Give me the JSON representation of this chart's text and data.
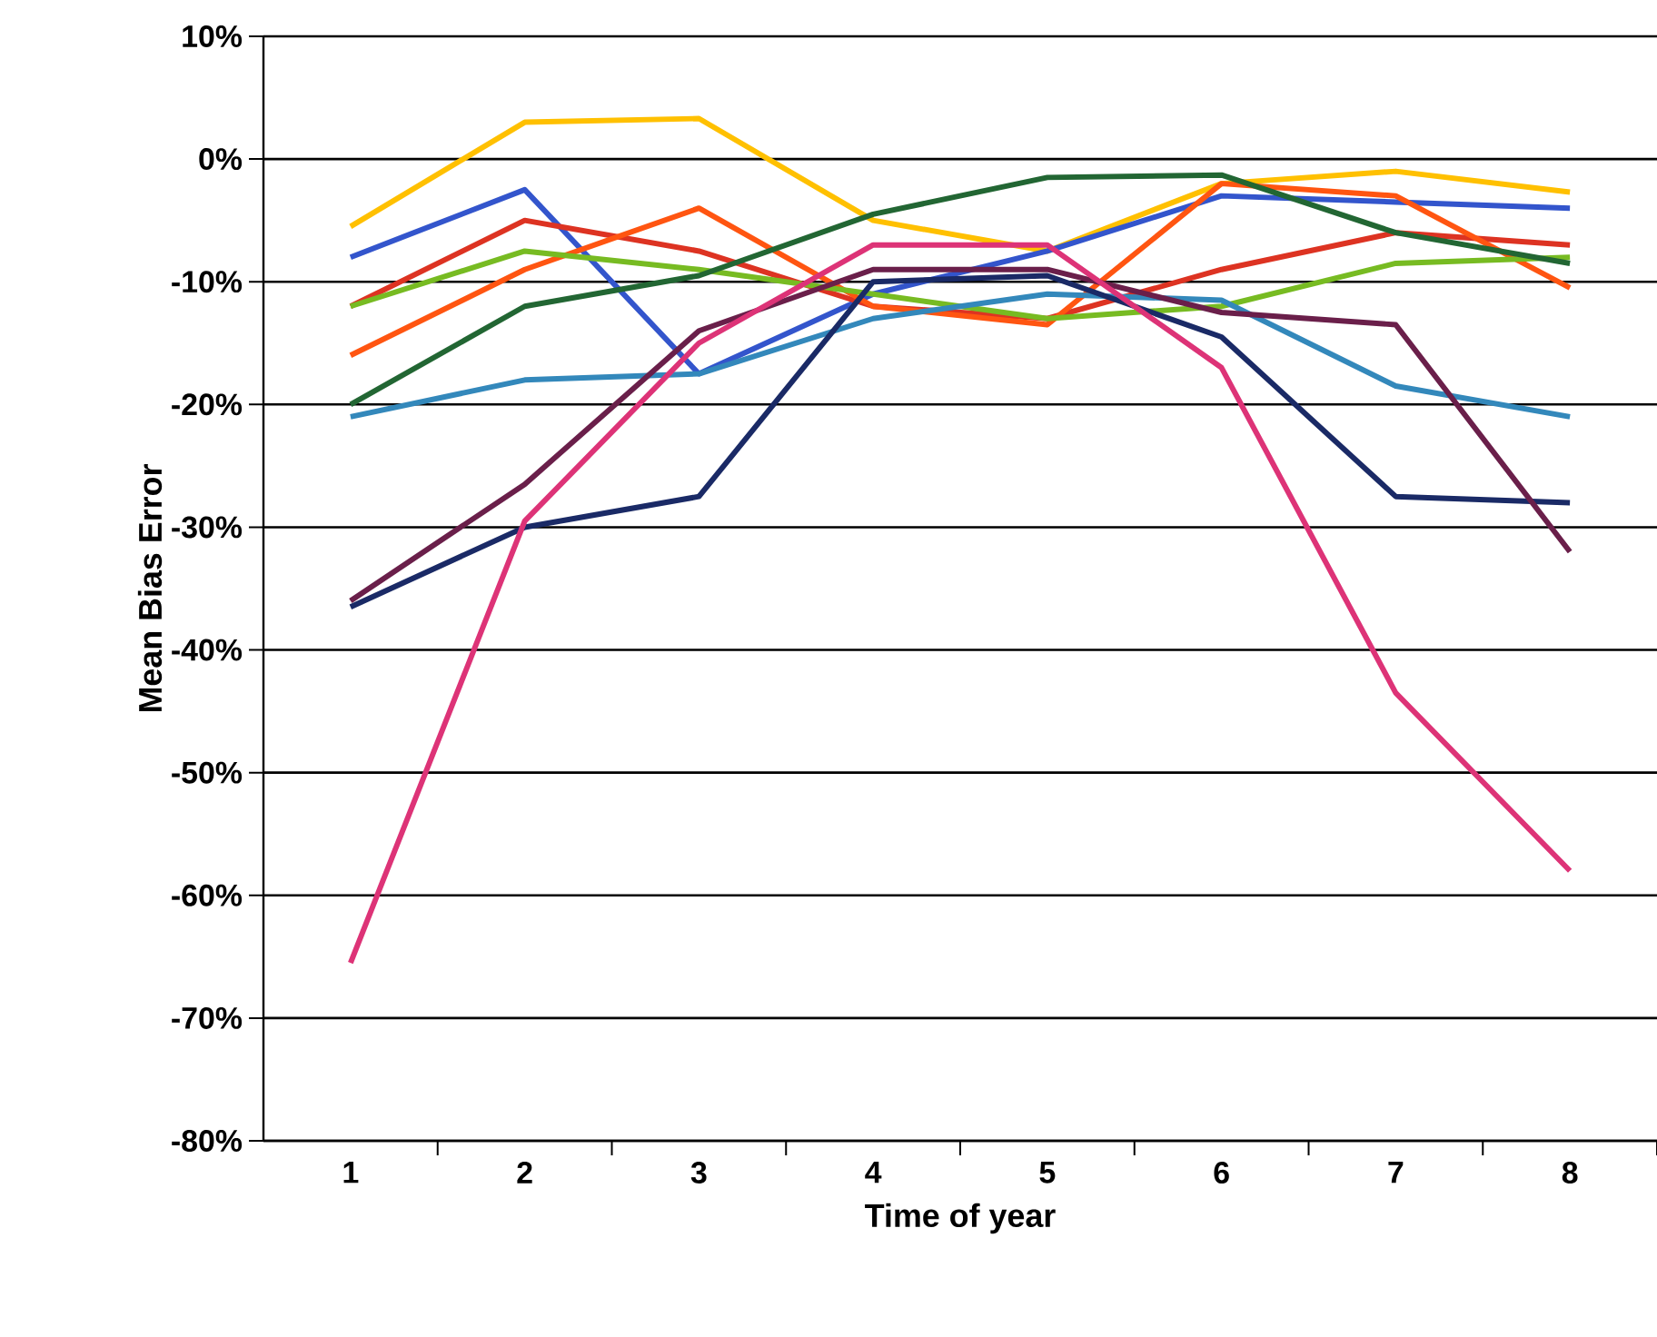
{
  "chart_data": {
    "type": "line",
    "xlabel": "Time of year",
    "ylabel": "Mean Bias Error",
    "categories": [
      "1",
      "2",
      "3",
      "4",
      "5",
      "6",
      "7",
      "8"
    ],
    "ylim": [
      -80,
      10
    ],
    "yticks": [
      {
        "value": -80,
        "label": "-80%"
      },
      {
        "value": -70,
        "label": "-70%"
      },
      {
        "value": -60,
        "label": "-60%"
      },
      {
        "value": -50,
        "label": "-50%"
      },
      {
        "value": -40,
        "label": "-40%"
      },
      {
        "value": -30,
        "label": "-30%"
      },
      {
        "value": -20,
        "label": "-20%"
      },
      {
        "value": -10,
        "label": "-10%"
      },
      {
        "value": 0,
        "label": "0%"
      },
      {
        "value": 10,
        "label": "10%"
      }
    ],
    "grid": "y",
    "marker": "none",
    "line_style": "solid",
    "series": [
      {
        "color": "#ffc000",
        "values": [
          -5.5,
          3,
          3.3,
          -5,
          -7.5,
          -2,
          -1,
          -2.7
        ]
      },
      {
        "color": "#3355cc",
        "values": [
          -8,
          -2.5,
          -17.5,
          -11,
          -7.5,
          -3,
          -3.5,
          -4
        ]
      },
      {
        "color": "#dd3322",
        "values": [
          -12,
          -5,
          -7.5,
          -12,
          -13,
          -9,
          -6,
          -7
        ]
      },
      {
        "color": "#ff5511",
        "values": [
          -16,
          -9,
          -4,
          -12,
          -13.5,
          -2,
          -3,
          -10.5
        ]
      },
      {
        "color": "#77bb22",
        "values": [
          -12,
          -7.5,
          -9,
          -11,
          -13,
          -12,
          -8.5,
          -8
        ]
      },
      {
        "color": "#226633",
        "values": [
          -20,
          -12,
          -9.5,
          -4.5,
          -1.5,
          -1.3,
          -6,
          -8.5
        ]
      },
      {
        "color": "#3388bb",
        "values": [
          -21,
          -18,
          -17.5,
          -13,
          -11,
          -11.5,
          -18.5,
          -21
        ]
      },
      {
        "color": "#1a2a66",
        "values": [
          -36.5,
          -30,
          -27.5,
          -10,
          -9.5,
          -14.5,
          -27.5,
          -28
        ]
      },
      {
        "color": "#6a1f4a",
        "values": [
          -36,
          -26.5,
          -14,
          -9,
          -9,
          -12.5,
          -13.5,
          -32
        ]
      },
      {
        "color": "#dd3377",
        "values": [
          -65.5,
          -29.5,
          -15,
          -7,
          -7,
          -17,
          -43.5,
          -58
        ]
      }
    ]
  }
}
